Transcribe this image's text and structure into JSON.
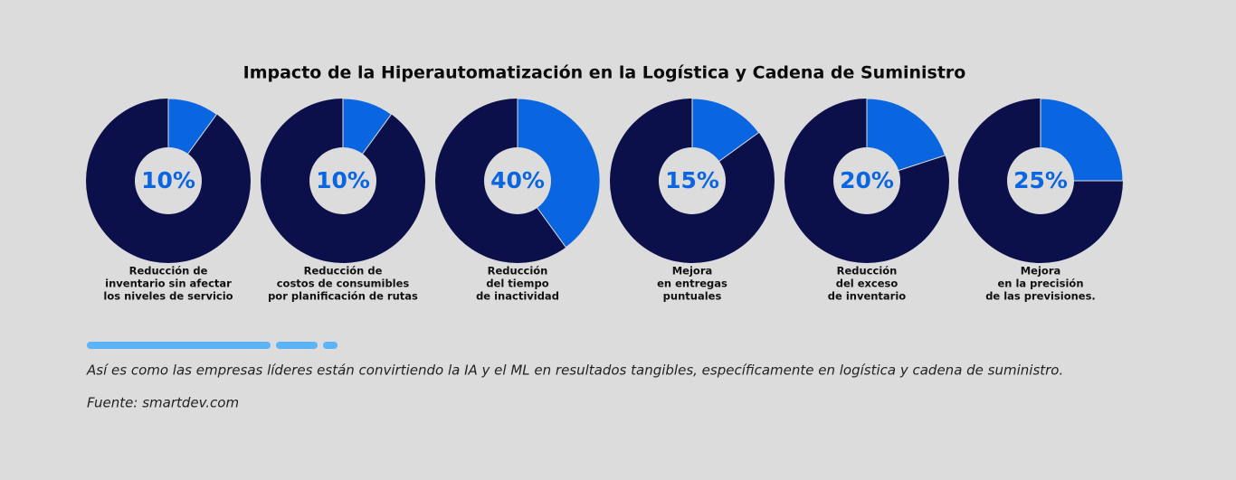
{
  "title": "Impacto de la Hiperautomatización en la Logística y Cadena de Suministro",
  "chart_data": [
    {
      "type": "donut",
      "values": [
        10
      ],
      "value_labels": [
        "10%"
      ],
      "color": "#0a66e0",
      "caption": [
        "Reducción de",
        "inventario sin afectar",
        "los niveles de servicio"
      ]
    },
    {
      "type": "donut",
      "values": [
        10
      ],
      "value_labels": [
        "10%"
      ],
      "color": "#0a66e0",
      "caption": [
        "Reducción de",
        "costos de consumibles",
        "por planificación de rutas"
      ]
    },
    {
      "type": "donut",
      "values": [
        40
      ],
      "value_labels": [
        "40%"
      ],
      "color": "#0a66e0",
      "caption": [
        "Reducción",
        "del tiempo",
        "de inactividad"
      ]
    },
    {
      "type": "donut",
      "values": [
        15
      ],
      "value_labels": [
        "15%"
      ],
      "color": "#0a66e0",
      "caption": [
        "Mejora",
        "en entregas",
        "puntuales"
      ]
    },
    {
      "type": "donut",
      "values": [
        20
      ],
      "value_labels": [
        "20%"
      ],
      "color": "#0a66e0",
      "caption": [
        "Reducción",
        "del exceso",
        "de inventario"
      ]
    },
    {
      "type": "donut",
      "values": [
        25
      ],
      "value_labels": [
        "25%"
      ],
      "color": "#0a66e0",
      "caption": [
        "Mejora",
        "en la precisión",
        "de las previsiones."
      ]
    }
  ],
  "note": "Así es como las empresas líderes están convirtiendo la IA y el ML en resultados tangibles, específicamente en logística y cadena de suministro.",
  "source": "Fuente: smartdev.com"
}
